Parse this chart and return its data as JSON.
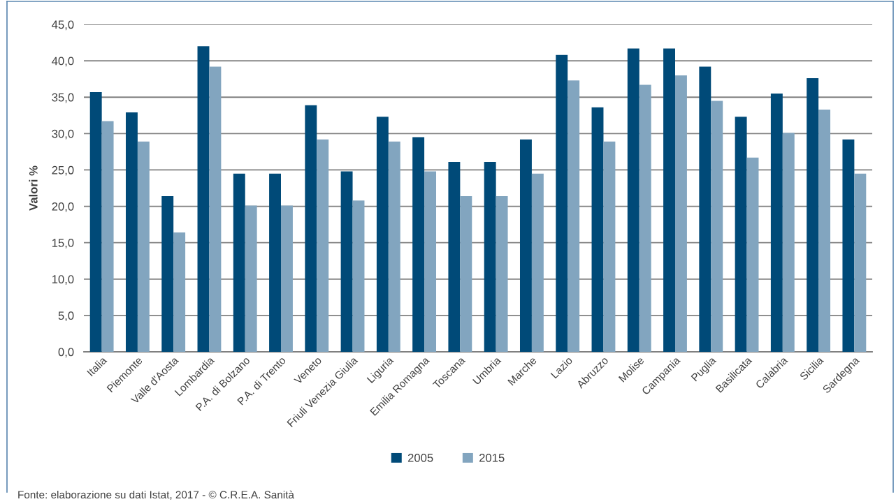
{
  "chart_data": {
    "type": "bar",
    "ylabel": "Valori %",
    "categories": [
      "Italia",
      "Piemonte",
      "Valle d'Aosta",
      "Lombardia",
      "P.A. di Bolzano",
      "P.A. di Trento",
      "Veneto",
      "Friuli Venezia Giulia",
      "Liguria",
      "Emilia Romagna",
      "Toscana",
      "Umbria",
      "Marche",
      "Lazio",
      "Abruzzo",
      "Molise",
      "Campania",
      "Puglia",
      "Basilicata",
      "Calabria",
      "Sicilia",
      "Sardegna"
    ],
    "series": [
      {
        "name": "2005",
        "color": "#004a78",
        "values": [
          35.7,
          32.9,
          21.4,
          42.0,
          24.5,
          24.5,
          33.9,
          24.8,
          32.3,
          29.5,
          26.1,
          26.1,
          29.2,
          40.8,
          33.6,
          41.7,
          41.7,
          39.2,
          32.3,
          35.5,
          37.6,
          29.2
        ]
      },
      {
        "name": "2015",
        "color": "#82a5bf",
        "values": [
          31.7,
          28.9,
          16.4,
          39.2,
          20.1,
          20.1,
          29.2,
          20.8,
          28.9,
          24.8,
          21.4,
          21.4,
          24.5,
          37.3,
          28.9,
          36.7,
          38.0,
          34.5,
          26.7,
          30.1,
          33.3,
          24.5
        ]
      }
    ],
    "ylim": [
      0,
      45
    ],
    "yticks": [
      {
        "value": 0,
        "label": "0,0"
      },
      {
        "value": 5,
        "label": "5,0"
      },
      {
        "value": 10,
        "label": "10,0"
      },
      {
        "value": 15,
        "label": "15,0"
      },
      {
        "value": 20,
        "label": "20,0"
      },
      {
        "value": 25,
        "label": "25,0"
      },
      {
        "value": 30,
        "label": "30,0"
      },
      {
        "value": 35,
        "label": "35,0"
      },
      {
        "value": 40,
        "label": "40,0"
      },
      {
        "value": 45,
        "label": "45,0"
      }
    ],
    "grid": "y",
    "legend": "bottom",
    "annotations": [
      "Fonte: elaborazione su dati Istat, 2017 - © C.R.E.A. Sanità"
    ]
  }
}
